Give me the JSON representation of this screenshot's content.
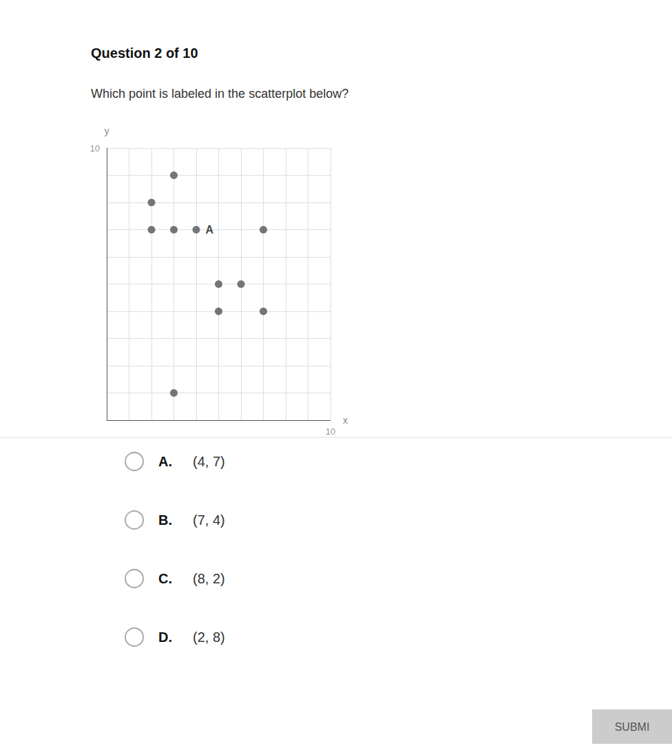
{
  "chart_data": {
    "type": "scatter",
    "title": "Question 2 of 10",
    "subtitle": "Which point is labeled in the scatterplot below?",
    "xlabel": "x",
    "ylabel": "y",
    "x": [
      2,
      3,
      2,
      3,
      4,
      7,
      5,
      6,
      5,
      7,
      3
    ],
    "values": [
      8,
      9,
      7,
      7,
      7,
      7,
      5,
      5,
      4,
      4,
      1
    ],
    "point_labels": [
      null,
      null,
      null,
      null,
      "A",
      null,
      null,
      null,
      null,
      null,
      null
    ],
    "color": "#555555",
    "xlim": [
      0,
      10
    ],
    "ylim": [
      0,
      10
    ],
    "xticks": [
      0,
      1,
      2,
      3,
      4,
      5,
      6,
      7,
      8,
      9,
      10
    ],
    "yticks": [
      0,
      1,
      2,
      3,
      4,
      5,
      6,
      7,
      8,
      9,
      10
    ],
    "grid": true,
    "tick_labels": false,
    "annotations": [
      {
        "text": "10",
        "x": 10,
        "y": 0
      },
      {
        "text": "10",
        "x": 0,
        "y": 10
      }
    ],
    "choices": [
      {
        "letter": "A.",
        "text": "(4, 7)"
      },
      {
        "letter": "B.",
        "text": "(7, 4)"
      },
      {
        "letter": "C.",
        "text": "(8, 2)"
      },
      {
        "letter": "D.",
        "text": "(2, 8)"
      }
    ],
    "button": "SUBMI"
  }
}
